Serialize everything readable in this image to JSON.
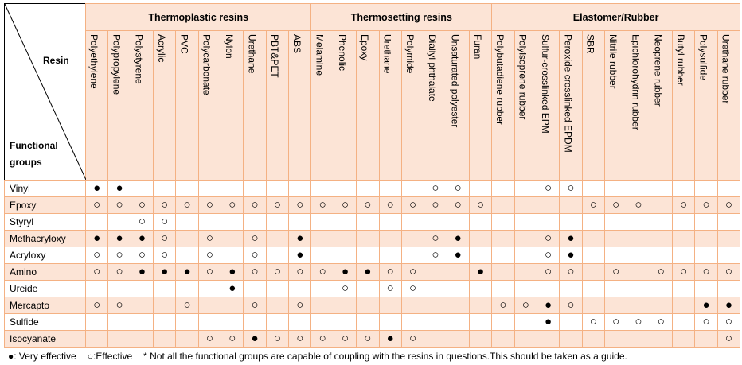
{
  "header": {
    "resin_label": "Resin",
    "groups_label": "Functional groups"
  },
  "groups": [
    {
      "name": "Thermoplastic resins",
      "columns": [
        "Polyethylene",
        "Polypropylene",
        "Polystyrene",
        "Acrylic",
        "PVC",
        "Polycarbonate",
        "Nylon",
        "Urethane",
        "PBT&PET",
        "ABS"
      ]
    },
    {
      "name": "Thermosetting resins",
      "columns": [
        "Melamine",
        "Phenolic",
        "Epoxy",
        "Urethane",
        "Polymide",
        "Diallyl phthalate",
        "Unsaturated polyester",
        "Furan"
      ]
    },
    {
      "name": "Elastomer/Rubber",
      "columns": [
        "Polybutadiene rubber",
        "Polyisoprene rubber",
        "Sulfur-crosslinked EPM",
        "Peroxide crosslinked EPDM",
        "SBR",
        "Nitrile rubber",
        "Epichlorohydrin rubber",
        "Neoprene rubber",
        "Butyl rubber",
        "Polysulfide",
        "Urethane rubber"
      ]
    }
  ],
  "rows": [
    {
      "label": "Vinyl",
      "cells": [
        "●",
        "●",
        null,
        null,
        null,
        null,
        null,
        null,
        null,
        null,
        null,
        null,
        null,
        null,
        null,
        "○",
        "○",
        null,
        null,
        null,
        "○",
        "○",
        null,
        null,
        null,
        null,
        null,
        null,
        null
      ]
    },
    {
      "label": "Epoxy",
      "cells": [
        "○",
        "○",
        "○",
        "○",
        "○",
        "○",
        "○",
        "○",
        "○",
        "○",
        "○",
        "○",
        "○",
        "○",
        "○",
        "○",
        "○",
        "○",
        null,
        null,
        null,
        null,
        "○",
        "○",
        "○",
        null,
        "○",
        "○",
        "○"
      ]
    },
    {
      "label": "Styryl",
      "cells": [
        null,
        null,
        "○",
        "○",
        null,
        null,
        null,
        null,
        null,
        null,
        null,
        null,
        null,
        null,
        null,
        null,
        null,
        null,
        null,
        null,
        null,
        null,
        null,
        null,
        null,
        null,
        null,
        null,
        null
      ]
    },
    {
      "label": "Methacryloxy",
      "cells": [
        "●",
        "●",
        "●",
        "○",
        null,
        "○",
        null,
        "○",
        null,
        "●",
        null,
        null,
        null,
        null,
        null,
        "○",
        "●",
        null,
        null,
        null,
        "○",
        "●",
        null,
        null,
        null,
        null,
        null,
        null,
        null
      ]
    },
    {
      "label": "Acryloxy",
      "cells": [
        "○",
        "○",
        "○",
        "○",
        null,
        "○",
        null,
        "○",
        null,
        "●",
        null,
        null,
        null,
        null,
        null,
        "○",
        "●",
        null,
        null,
        null,
        "○",
        "●",
        null,
        null,
        null,
        null,
        null,
        null,
        null
      ]
    },
    {
      "label": "Amino",
      "cells": [
        "○",
        "○",
        "●",
        "●",
        "●",
        "○",
        "●",
        "○",
        "○",
        "○",
        "○",
        "●",
        "●",
        "○",
        "○",
        null,
        null,
        "●",
        null,
        null,
        "○",
        "○",
        null,
        "○",
        null,
        "○",
        "○",
        "○",
        "○"
      ]
    },
    {
      "label": "Ureide",
      "cells": [
        null,
        null,
        null,
        null,
        null,
        null,
        "●",
        null,
        null,
        null,
        null,
        "○",
        null,
        "○",
        "○",
        null,
        null,
        null,
        null,
        null,
        null,
        null,
        null,
        null,
        null,
        null,
        null,
        null,
        null
      ]
    },
    {
      "label": "Mercapto",
      "cells": [
        "○",
        "○",
        null,
        null,
        "○",
        null,
        null,
        "○",
        null,
        "○",
        null,
        null,
        null,
        null,
        null,
        null,
        null,
        null,
        "○",
        "○",
        "●",
        "○",
        null,
        null,
        null,
        null,
        null,
        "●",
        "●"
      ]
    },
    {
      "label": "Sulfide",
      "cells": [
        null,
        null,
        null,
        null,
        null,
        null,
        null,
        null,
        null,
        null,
        null,
        null,
        null,
        null,
        null,
        null,
        null,
        null,
        null,
        null,
        "●",
        null,
        "○",
        "○",
        "○",
        "○",
        null,
        "○",
        "○"
      ]
    },
    {
      "label": "Isocyanate",
      "cells": [
        null,
        null,
        null,
        null,
        null,
        "○",
        "○",
        "●",
        "○",
        "○",
        "○",
        "○",
        "○",
        "●",
        "○",
        null,
        null,
        null,
        null,
        null,
        null,
        null,
        null,
        null,
        null,
        null,
        null,
        null,
        "○"
      ]
    }
  ],
  "footer": [
    "●: Very effective",
    "○:Effective",
    "* Not all the functional groups are capable of coupling with the resins in questions.This should be taken as a guide."
  ]
}
